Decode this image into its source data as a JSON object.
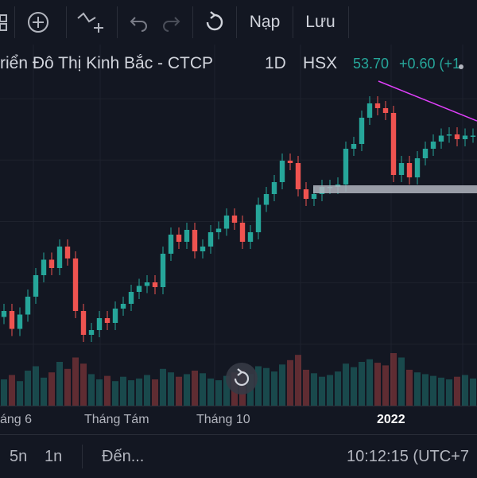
{
  "toolbar": {
    "add_indicator_icon": "plus-circle-icon",
    "compare_icon": "line-plus-icon",
    "undo_icon": "undo-icon",
    "redo_icon": "redo-icon",
    "refresh_icon": "refresh-icon",
    "load_label": "Nạp",
    "save_label": "Lưu"
  },
  "legend": {
    "symbol_name": "riển Đô Thị Kinh Bắc - CTCP",
    "interval": "1D",
    "exchange": "HSX",
    "last_price": "53.70",
    "change": "+0.60 (+1"
  },
  "x_axis": {
    "labels": [
      "áng 6",
      "Tháng Tám",
      "Tháng 10",
      "2022"
    ]
  },
  "bottom_bar": {
    "range_5d": "5n",
    "range_1d": "1n",
    "goto_label": "Đến...",
    "clock": "10:12:15 (UTC+7"
  },
  "colors": {
    "background": "#131722",
    "up": "#26a69a",
    "down": "#ef5350",
    "trendline": "#e040fb",
    "rectangle": "#b2b5be"
  },
  "chart_data": {
    "type": "candlestick",
    "title": "",
    "xlabel": "",
    "ylabel": "",
    "x": [
      0,
      1,
      2,
      3,
      4,
      5,
      6,
      7,
      8,
      9,
      10,
      11,
      12,
      13,
      14,
      15,
      16,
      17,
      18,
      19,
      20,
      21,
      22,
      23,
      24,
      25,
      26,
      27,
      28,
      29,
      30,
      31,
      32,
      33,
      34,
      35,
      36,
      37,
      38,
      39,
      40,
      41,
      42,
      43,
      44,
      45,
      46,
      47,
      48,
      49,
      50,
      51,
      52,
      53,
      54,
      55,
      56,
      57,
      58,
      59
    ],
    "close": [
      39.0,
      37.5,
      38.7,
      40.2,
      42.0,
      43.3,
      42.6,
      44.4,
      43.4,
      39.0,
      37.0,
      37.4,
      38.4,
      38.0,
      39.2,
      39.6,
      40.6,
      41.1,
      41.4,
      41.0,
      43.8,
      45.4,
      44.8,
      45.8,
      44.0,
      44.4,
      45.6,
      45.9,
      47.0,
      46.4,
      44.8,
      45.6,
      47.9,
      48.8,
      49.8,
      51.6,
      51.4,
      49.2,
      48.4,
      48.8,
      49.4,
      49.4,
      49.6,
      52.6,
      53.0,
      55.2,
      56.4,
      56.0,
      55.6,
      50.4,
      51.4,
      50.2,
      51.8,
      52.6,
      53.2,
      53.7,
      53.8,
      53.4,
      53.7,
      53.7
    ],
    "volume": [
      30,
      35,
      28,
      40,
      45,
      32,
      38,
      50,
      42,
      55,
      48,
      36,
      30,
      34,
      28,
      33,
      29,
      31,
      35,
      30,
      42,
      38,
      33,
      36,
      40,
      37,
      31,
      29,
      34,
      38,
      41,
      36,
      45,
      43,
      39,
      47,
      52,
      58,
      41,
      37,
      33,
      35,
      39,
      48,
      44,
      50,
      53,
      49,
      46,
      60,
      55,
      41,
      38,
      36,
      34,
      32,
      30,
      33,
      35,
      31
    ],
    "ylim": [
      36,
      60
    ],
    "volume_max": 100,
    "overlays": [
      "trendline",
      "horizontal-rectangle"
    ]
  }
}
